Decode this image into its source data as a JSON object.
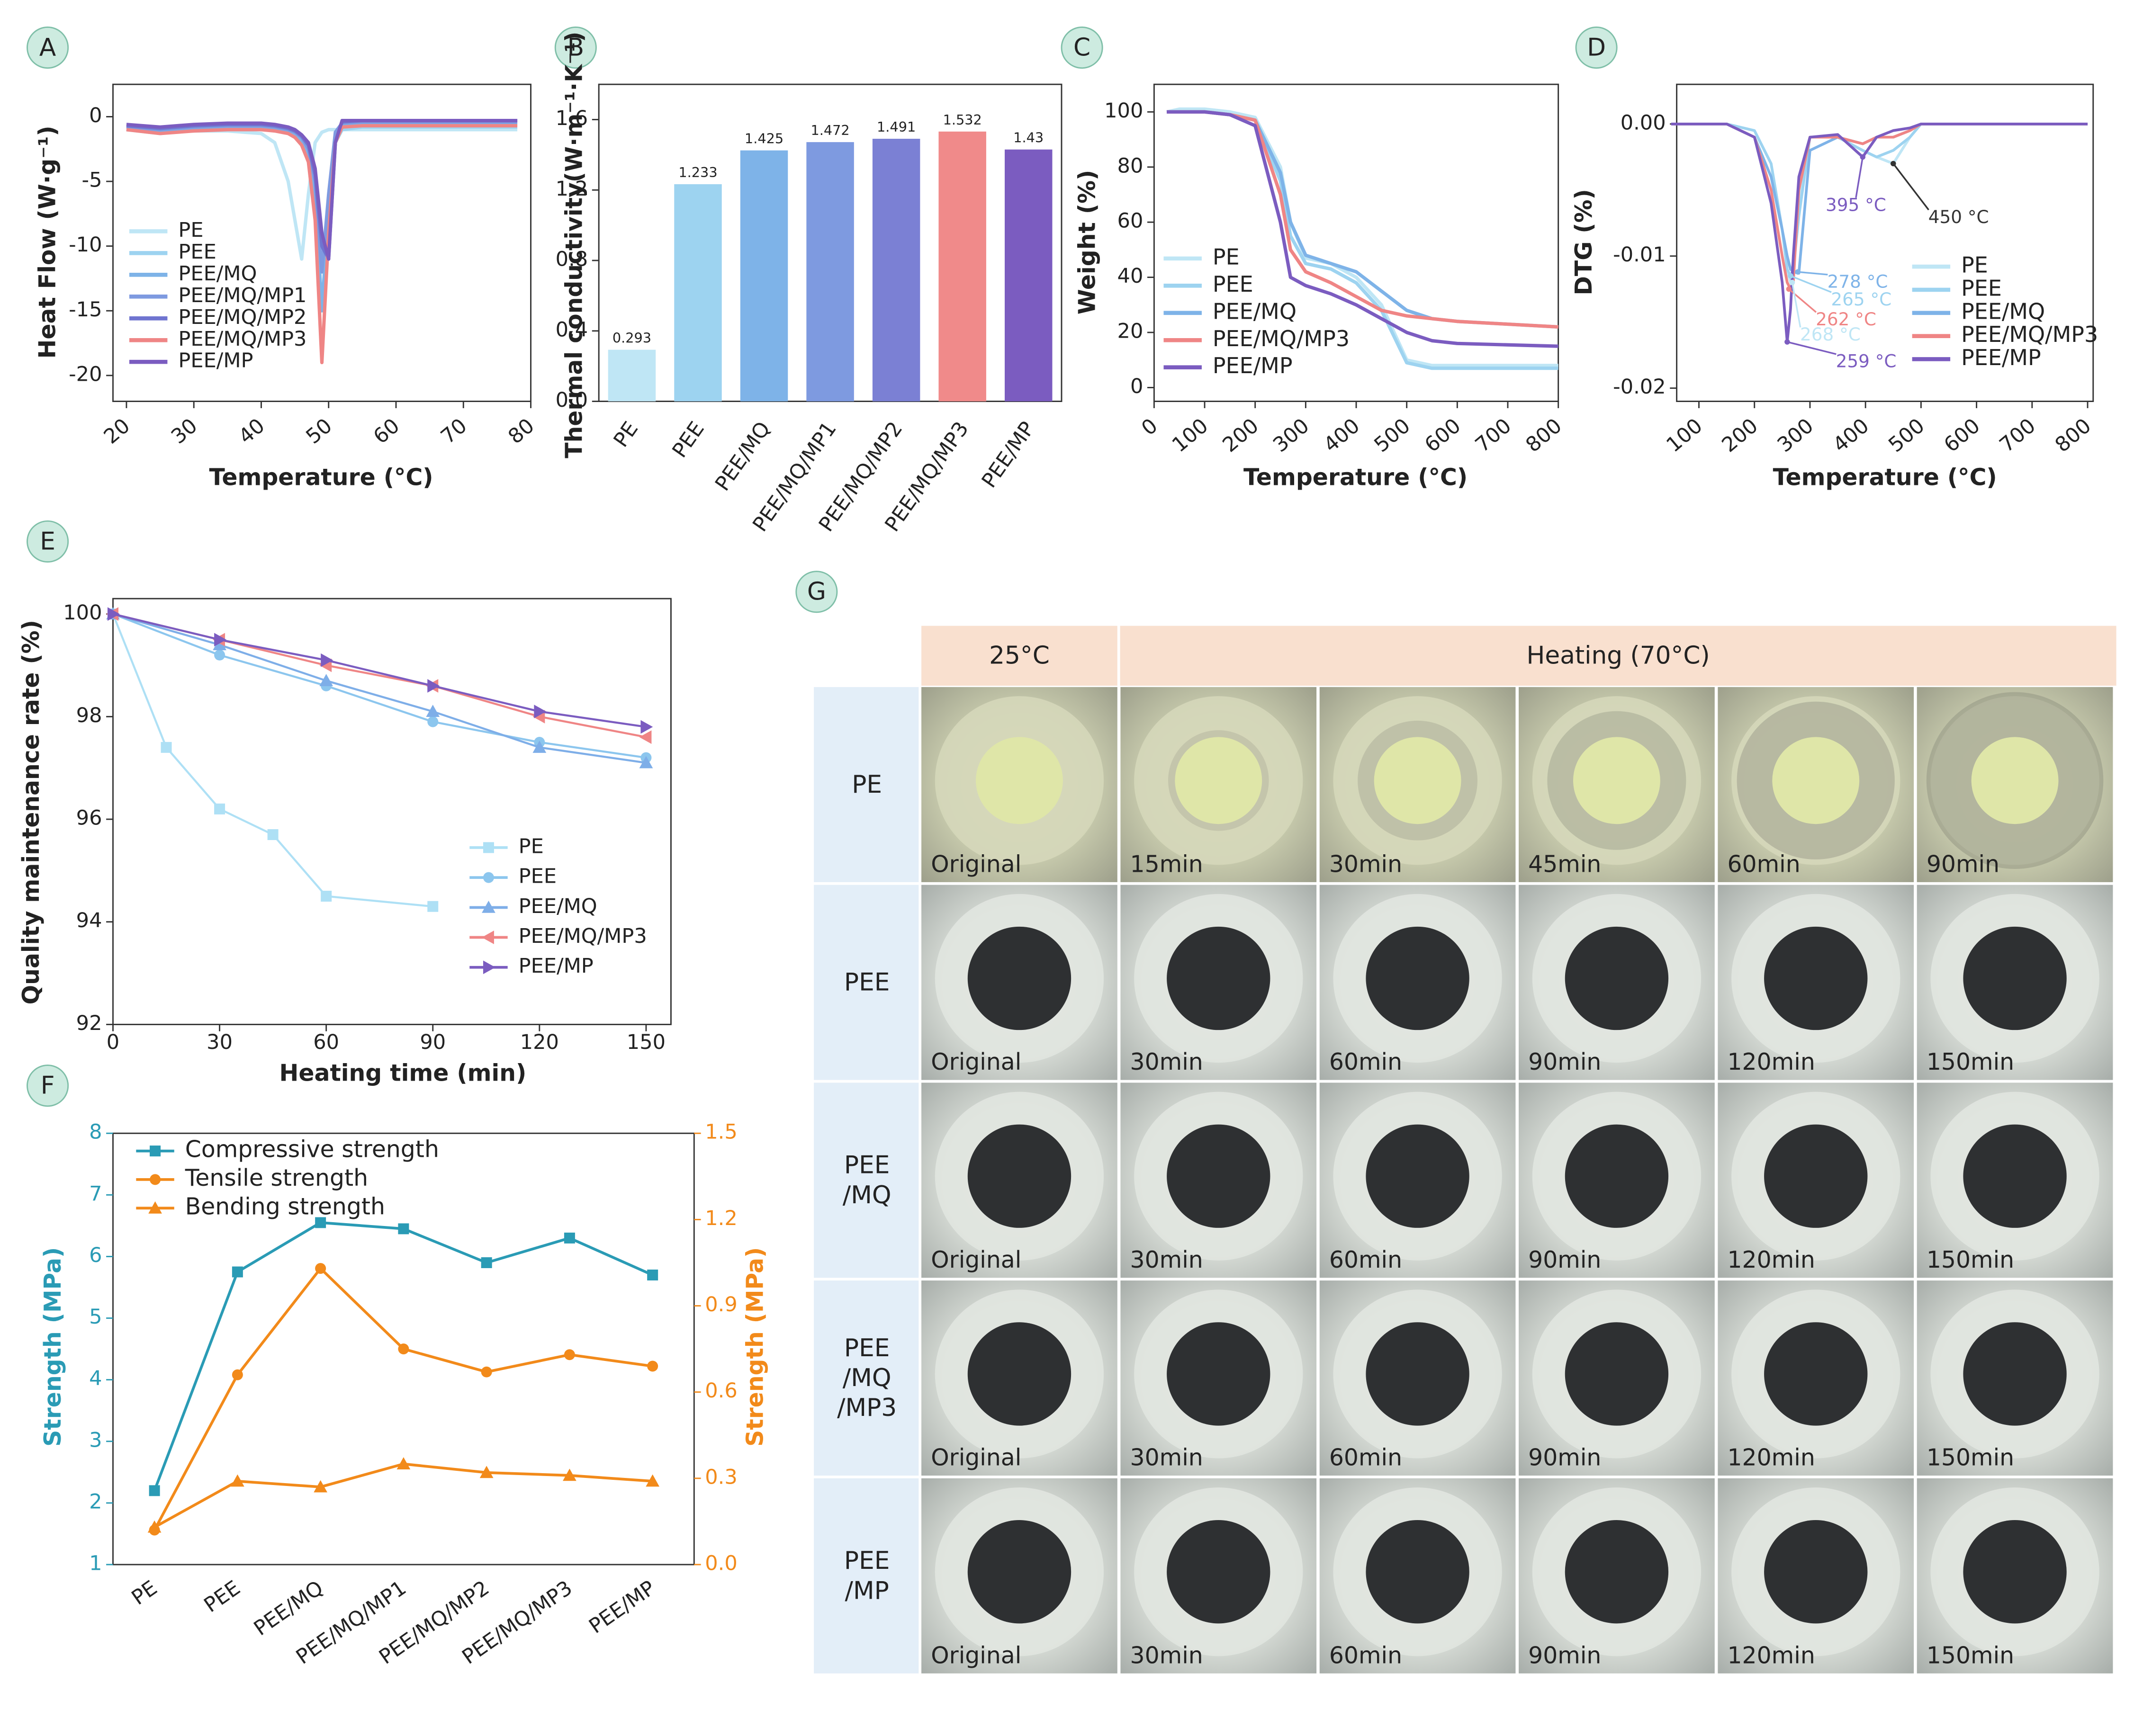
{
  "chart_data": [
    {
      "panel": "A",
      "type": "line",
      "xlabel": "Temperature (°C)",
      "ylabel": "Heat Flow (W·g⁻¹)",
      "x": [
        20,
        25,
        30,
        35,
        40,
        42,
        44,
        45,
        46,
        47,
        48,
        49,
        50,
        51,
        52,
        55,
        60,
        70,
        78
      ],
      "xlim": [
        18,
        80
      ],
      "xticks": [
        20,
        30,
        40,
        50,
        60,
        70,
        80
      ],
      "ylim": [
        -22,
        2.5
      ],
      "yticks": [
        -20,
        -15,
        -10,
        -5,
        0
      ],
      "series": [
        {
          "name": "PE",
          "color": "#bfe6f5",
          "values": [
            -1,
            -1.2,
            -1.1,
            -1.1,
            -1.3,
            -2,
            -5,
            -8,
            -11,
            -6,
            -2,
            -1.2,
            -1,
            -1,
            -1,
            -1,
            -1,
            -1,
            -1
          ]
        },
        {
          "name": "PEE",
          "color": "#9dd3f0",
          "values": [
            -1,
            -1.3,
            -1,
            -0.9,
            -0.9,
            -1,
            -1.2,
            -1.5,
            -2,
            -3,
            -6,
            -15,
            -8,
            -2,
            -1,
            -0.8,
            -0.8,
            -0.8,
            -0.8
          ]
        },
        {
          "name": "PEE/MQ",
          "color": "#7eb3e8",
          "values": [
            -1,
            -1.2,
            -0.9,
            -0.8,
            -0.8,
            -0.9,
            -1.1,
            -1.4,
            -1.8,
            -2.8,
            -6,
            -15,
            -7,
            -1.5,
            -0.7,
            -0.6,
            -0.6,
            -0.6,
            -0.6
          ]
        },
        {
          "name": "PEE/MQ/MP1",
          "color": "#7e9ae0",
          "values": [
            -0.8,
            -1,
            -0.8,
            -0.7,
            -0.7,
            -0.8,
            -1,
            -1.2,
            -1.6,
            -2.5,
            -5,
            -12,
            -6,
            -1.2,
            -0.5,
            -0.4,
            -0.4,
            -0.4,
            -0.4
          ]
        },
        {
          "name": "PEE/MQ/MP2",
          "color": "#6f74d0",
          "values": [
            -0.7,
            -0.9,
            -0.7,
            -0.6,
            -0.6,
            -0.7,
            -0.9,
            -1.1,
            -1.5,
            -2.2,
            -4.5,
            -10,
            -11,
            -2,
            -0.4,
            -0.3,
            -0.3,
            -0.3,
            -0.3
          ]
        },
        {
          "name": "PEE/MQ/MP3",
          "color": "#ef8585",
          "values": [
            -1,
            -1.3,
            -1.1,
            -1,
            -1,
            -1.1,
            -1.3,
            -1.6,
            -2.2,
            -3.5,
            -8,
            -19,
            -9,
            -2,
            -0.8,
            -0.7,
            -0.7,
            -0.7,
            -0.7
          ]
        },
        {
          "name": "PEE/MP",
          "color": "#7b5cc0",
          "values": [
            -0.6,
            -0.8,
            -0.6,
            -0.5,
            -0.5,
            -0.6,
            -0.8,
            -1,
            -1.4,
            -2,
            -4,
            -9,
            -11,
            -2,
            -0.3,
            -0.3,
            -0.3,
            -0.3,
            -0.3
          ]
        }
      ]
    },
    {
      "panel": "B",
      "type": "bar",
      "ylabel": "Thermal conductivity(W·m⁻¹·K⁻¹)",
      "categories": [
        "PE",
        "PEE",
        "PEE/MQ",
        "PEE/MQ/MP1",
        "PEE/MQ/MP2",
        "PEE/MQ/MP3",
        "PEE/MP"
      ],
      "values": [
        0.293,
        1.233,
        1.425,
        1.472,
        1.491,
        1.532,
        1.43
      ],
      "colors": [
        "#bfe6f5",
        "#9dd3f0",
        "#7eb3e8",
        "#7e9ae0",
        "#7b80d4",
        "#f08a8a",
        "#7b5cc0"
      ],
      "ylim": [
        0,
        1.8
      ],
      "yticks": [
        {
          "value": 0,
          "label": "0.0"
        },
        0.4,
        0.8,
        1.2,
        1.6
      ]
    },
    {
      "panel": "C",
      "type": "line",
      "xlabel": "Temperature (°C)",
      "ylabel": "Weight (%)",
      "x": [
        25,
        50,
        100,
        150,
        200,
        250,
        270,
        300,
        350,
        400,
        450,
        500,
        550,
        600,
        700,
        800
      ],
      "xlim": [
        0,
        800
      ],
      "xticks": [
        0,
        100,
        200,
        300,
        400,
        500,
        600,
        700,
        800
      ],
      "ylim": [
        -5,
        110
      ],
      "yticks": [
        0,
        20,
        40,
        60,
        80,
        100
      ],
      "series": [
        {
          "name": "PE",
          "color": "#bfe6f5",
          "values": [
            100,
            101,
            101,
            100,
            98,
            80,
            60,
            47,
            45,
            40,
            30,
            10,
            8,
            8,
            8,
            8
          ]
        },
        {
          "name": "PEE",
          "color": "#9dd3f0",
          "values": [
            100,
            100,
            100,
            99,
            97,
            75,
            55,
            45,
            43,
            38,
            28,
            9,
            7,
            7,
            7,
            7
          ]
        },
        {
          "name": "PEE/MQ",
          "color": "#7eb3e8",
          "values": [
            100,
            100,
            100,
            99,
            97,
            78,
            60,
            48,
            45,
            42,
            35,
            28,
            25,
            24,
            23,
            22
          ]
        },
        {
          "name": "PEE/MQ/MP3",
          "color": "#ef8585",
          "values": [
            100,
            100,
            100,
            99,
            97,
            70,
            50,
            42,
            38,
            33,
            28,
            26,
            25,
            24,
            23,
            22
          ]
        },
        {
          "name": "PEE/MP",
          "color": "#7b5cc0",
          "values": [
            100,
            100,
            100,
            99,
            95,
            60,
            40,
            37,
            34,
            30,
            25,
            20,
            17,
            16,
            15.5,
            15
          ]
        }
      ]
    },
    {
      "panel": "D",
      "type": "line",
      "xlabel": "Temperature (°C)",
      "ylabel": "DTG (%)",
      "x": [
        50,
        100,
        150,
        200,
        230,
        250,
        259,
        265,
        270,
        280,
        300,
        350,
        395,
        420,
        450,
        480,
        500,
        600,
        700,
        800
      ],
      "xlim": [
        60,
        810
      ],
      "xticks": [
        100,
        200,
        300,
        400,
        500,
        600,
        700,
        800
      ],
      "ylim": [
        -0.021,
        0.003
      ],
      "yticks": [
        -0.02,
        -0.01,
        {
          "value": 0,
          "label": "0.00"
        }
      ],
      "series": [
        {
          "name": "PE",
          "color": "#bfe6f5",
          "values": [
            0,
            0,
            0,
            -0.0005,
            -0.003,
            -0.008,
            -0.011,
            -0.012,
            -0.011,
            -0.006,
            -0.001,
            -0.001,
            -0.002,
            -0.0025,
            -0.003,
            -0.001,
            0,
            0,
            0,
            0
          ]
        },
        {
          "name": "PEE",
          "color": "#9dd3f0",
          "values": [
            0,
            0,
            0,
            -0.0005,
            -0.003,
            -0.008,
            -0.011,
            -0.0115,
            -0.011,
            -0.007,
            -0.001,
            -0.001,
            -0.002,
            -0.0025,
            -0.002,
            -0.001,
            0,
            0,
            0,
            0
          ]
        },
        {
          "name": "PEE/MQ",
          "color": "#7eb3e8",
          "values": [
            0,
            0,
            0,
            -0.001,
            -0.004,
            -0.008,
            -0.01,
            -0.011,
            -0.0112,
            -0.0113,
            -0.002,
            -0.001,
            -0.0015,
            -0.001,
            -0.001,
            -0.0005,
            0,
            0,
            0,
            0
          ]
        },
        {
          "name": "PEE/MQ/MP3",
          "color": "#ef8585",
          "values": [
            0,
            0,
            0,
            -0.001,
            -0.005,
            -0.01,
            -0.012,
            -0.0125,
            -0.012,
            -0.005,
            -0.001,
            -0.001,
            -0.0015,
            -0.001,
            -0.001,
            -0.0005,
            0,
            0,
            0,
            0
          ]
        },
        {
          "name": "PEE/MP",
          "color": "#7b5cc0",
          "values": [
            0,
            0,
            0,
            -0.001,
            -0.006,
            -0.012,
            -0.0165,
            -0.014,
            -0.01,
            -0.004,
            -0.001,
            -0.0008,
            -0.0025,
            -0.001,
            -0.0005,
            -0.0003,
            0,
            0,
            0,
            0
          ]
        }
      ],
      "annotations": [
        {
          "text": "395 °C",
          "x": 395,
          "y": -0.0025,
          "color": "#7b5cc0"
        },
        {
          "text": "450 °C",
          "x": 450,
          "y": -0.003,
          "color": "#333333"
        },
        {
          "text": "278 °C",
          "x": 278,
          "y": -0.0112,
          "color": "#7eb3e8"
        },
        {
          "text": "265 °C",
          "x": 265,
          "y": -0.0115,
          "color": "#9dd3f0"
        },
        {
          "text": "262 °C",
          "x": 262,
          "y": -0.0125,
          "color": "#ef8585"
        },
        {
          "text": "268 °C",
          "x": 268,
          "y": -0.012,
          "color": "#bfe6f5"
        },
        {
          "text": "259 °C",
          "x": 259,
          "y": -0.0165,
          "color": "#7b5cc0"
        }
      ]
    },
    {
      "panel": "E",
      "type": "line",
      "xlabel": "Heating time (min)",
      "ylabel": "Quality maintenance rate (%)",
      "xlim": [
        0,
        157
      ],
      "xticks": [
        0,
        30,
        60,
        90,
        120,
        150
      ],
      "ylim": [
        92,
        100.3
      ],
      "yticks": [
        92,
        94,
        96,
        98,
        100
      ],
      "series": [
        {
          "name": "PE",
          "color": "#aee0f5",
          "marker": "square",
          "x": [
            0,
            15,
            30,
            45,
            60,
            90
          ],
          "values": [
            100,
            97.4,
            96.2,
            95.7,
            94.5,
            94.3
          ]
        },
        {
          "name": "PEE",
          "color": "#8cc6ee",
          "marker": "circle",
          "x": [
            0,
            30,
            60,
            90,
            120,
            150
          ],
          "values": [
            100,
            99.2,
            98.6,
            97.9,
            97.5,
            97.2
          ]
        },
        {
          "name": "PEE/MQ",
          "color": "#7eaee8",
          "marker": "triangle-up",
          "x": [
            0,
            30,
            60,
            90,
            120,
            150
          ],
          "values": [
            100,
            99.4,
            98.7,
            98.1,
            97.4,
            97.1
          ]
        },
        {
          "name": "PEE/MQ/MP3",
          "color": "#ef8585",
          "marker": "triangle-left",
          "x": [
            0,
            30,
            60,
            90,
            120,
            150
          ],
          "values": [
            100,
            99.5,
            99,
            98.6,
            98,
            97.6
          ]
        },
        {
          "name": "PEE/MP",
          "color": "#7b5cc0",
          "marker": "triangle-right",
          "x": [
            0,
            30,
            60,
            90,
            120,
            150
          ],
          "values": [
            100,
            99.5,
            99.1,
            98.6,
            98.1,
            97.8
          ]
        }
      ]
    },
    {
      "panel": "F",
      "type": "line",
      "ylabel": "Strength (MPa)",
      "y2label": "Strength (MPa)",
      "categories": [
        "PE",
        "PEE",
        "PEE/MQ",
        "PEE/MQ/MP1",
        "PEE/MQ/MP2",
        "PEE/MQ/MP3",
        "PEE/MP"
      ],
      "ylim": [
        1,
        8
      ],
      "yticks": [
        1,
        2,
        3,
        4,
        5,
        6,
        7,
        8
      ],
      "y2lim": [
        0,
        1.5
      ],
      "y2ticks": [
        {
          "value": 0,
          "label": "0.0"
        },
        0.3,
        0.6,
        0.9,
        1.2,
        1.5
      ],
      "series": [
        {
          "name": "Compressive strength",
          "color": "#2a9bb5",
          "marker": "square",
          "values": [
            2.2,
            5.75,
            6.55,
            6.45,
            5.9,
            6.3,
            5.7
          ]
        },
        {
          "name": "Tensile strength",
          "color": "#f28a1a",
          "marker": "circle",
          "axis": "y2",
          "values": [
            0.12,
            0.66,
            1.03,
            0.75,
            0.67,
            0.73,
            0.69
          ]
        },
        {
          "name": "Bending strength",
          "color": "#f28a1a",
          "marker": "triangle-up",
          "axis": "y2",
          "values": [
            0.13,
            0.29,
            0.27,
            0.35,
            0.32,
            0.31,
            0.29
          ]
        }
      ]
    }
  ],
  "photo_grid": {
    "panel": "G",
    "header": [
      "25°C",
      "Heating (70°C)"
    ],
    "rows": [
      {
        "label": [
          "PE"
        ],
        "captions": [
          "Original",
          "15min",
          "30min",
          "45min",
          "60min",
          "90min"
        ]
      },
      {
        "label": [
          "PEE"
        ],
        "captions": [
          "Original",
          "30min",
          "60min",
          "90min",
          "120min",
          "150min"
        ]
      },
      {
        "label": [
          "PEE",
          "/MQ"
        ],
        "captions": [
          "Original",
          "30min",
          "60min",
          "90min",
          "120min",
          "150min"
        ]
      },
      {
        "label": [
          "PEE",
          "/MQ",
          "/MP3"
        ],
        "captions": [
          "Original",
          "30min",
          "60min",
          "90min",
          "120min",
          "150min"
        ]
      },
      {
        "label": [
          "PEE",
          "/MP"
        ],
        "captions": [
          "Original",
          "30min",
          "60min",
          "90min",
          "120min",
          "150min"
        ]
      }
    ]
  }
}
